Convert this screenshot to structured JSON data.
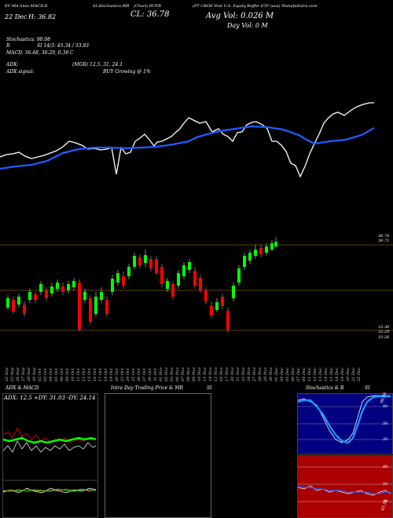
{
  "header": {
    "chart_name": "EV MA lines MACD,B",
    "chart_code": "(Chart) BUFB",
    "title": "(FT CBOE Vest U.S. Equity Buffer ETF (usa) MunafaSutra.com",
    "date_label": "22 Dec",
    "close_label": "CL: 36.78",
    "h_label": "H: 36.82",
    "si_label": "SI,Stochastics,MR",
    "avg_vol": "Avg Vol: 0.026  M",
    "day_vol": "Day Vol: 0   M"
  },
  "indicators": {
    "stochastics": "Stochastics: 98.08",
    "r": "R",
    "si": "SI 14/3: 45.34  /  33.93",
    "macd": "MACD: 36.68, 36.29, 0.39 C",
    "adx_label": "ADX:",
    "mgr": "(MGR) 12.5,  31,  24.1",
    "adx_signal": "ADX  signal:",
    "buy": "BUY Growing @ 1%"
  },
  "price_axis": {
    "top_1": "36.78",
    "top_2": "36.71",
    "bot_1": "33.36",
    "bot_2": "33.29",
    "bot_3": "33.26"
  },
  "x_dates": [
    "22 Sep",
    "25 Sep",
    "26 Sep",
    "27 Sep",
    "28 Sep",
    "29 Sep",
    "02 Oct",
    "03 Oct",
    "04 Oct",
    "05 Oct",
    "06 Oct",
    "09 Oct",
    "10 Oct",
    "11 Oct",
    "12 Oct",
    "13 Oct",
    "16 Oct",
    "17 Oct",
    "18 Oct",
    "19 Oct",
    "20 Oct",
    "23 Oct",
    "24 Oct",
    "25 Oct",
    "26 Oct",
    "27 Oct",
    "30 Oct",
    "31 Oct",
    "01 Nov",
    "02 Nov",
    "03 Nov",
    "06 Nov",
    "07 Nov",
    "08 Nov",
    "09 Nov",
    "10 Nov",
    "13 Nov",
    "14 Nov",
    "15 Nov",
    "16 Nov",
    "17 Nov",
    "20 Nov",
    "21 Nov",
    "22 Nov",
    "24 Nov",
    "27 Nov",
    "28 Nov",
    "29 Nov",
    "30 Nov",
    "01 Dec",
    "04 Dec",
    "05 Dec",
    "06 Dec",
    "07 Dec",
    "08 Dec",
    "11 Dec",
    "12 Dec",
    "13 Dec",
    "14 Dec",
    "15 Dec",
    "18 Dec",
    "19 Dec",
    "20 Dec",
    "21 Dec",
    "22 Dec"
  ],
  "bottom_panels": {
    "adx_title": "ADX  & MACD",
    "adx_values": "ADX: 12.5  +DY: 31.03  -DY: 24.14",
    "intraday_title": "Intra  Day Trading Price  & MR",
    "intraday_si": "SI",
    "stoch_title": "Stochastics & R",
    "stoch_si": "SI",
    "stoch_levels": [
      "80",
      "50",
      "20"
    ],
    "stoch_value": "98.08",
    "si_levels": [
      "80",
      "50",
      "20"
    ],
    "si_value": "45.34"
  },
  "colors": {
    "bg": "#000000",
    "up": "#00ff00",
    "down": "#ff0000",
    "ma": "#1e5bff",
    "si_panel": "#aa0000",
    "guide": "#b8860b"
  }
}
